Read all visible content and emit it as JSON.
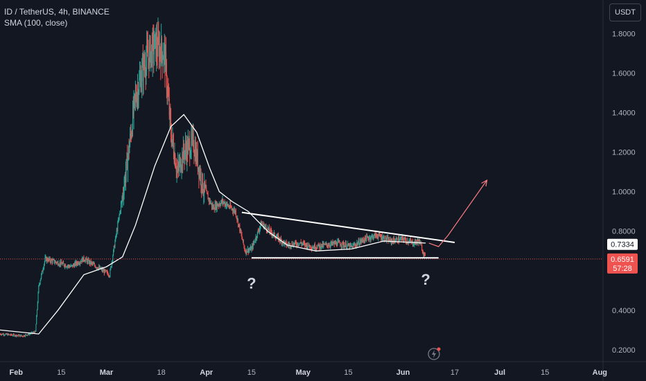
{
  "header": {
    "symbol_line": "ID / TetherUS, 4h, BINANCE",
    "indicator_line": "SMA (100, close)",
    "currency_button": "USDT"
  },
  "colors": {
    "background": "#131722",
    "up": "#26a69a",
    "down": "#ef5350",
    "sma": "#ffffff",
    "annotation": "#ffffff",
    "arrow": "#f77c80",
    "last_price_line": "#ef5350"
  },
  "chart_data": {
    "type": "candlestick",
    "timeframe": "4h",
    "x_axis": {
      "ticks": [
        "Feb",
        "15",
        "Mar",
        "18",
        "Apr",
        "15",
        "May",
        "15",
        "Jun",
        "17",
        "Jul",
        "15",
        "Aug"
      ],
      "bold_ticks": [
        "Feb",
        "Mar",
        "Apr",
        "May",
        "Jun",
        "Jul",
        "Aug"
      ],
      "tick_dates": [
        "2023-02-01",
        "2023-02-15",
        "2023-03-01",
        "2023-03-18",
        "2023-04-01",
        "2023-04-15",
        "2023-05-01",
        "2023-05-15",
        "2023-06-01",
        "2023-06-17",
        "2023-07-01",
        "2023-07-15",
        "2023-08-01"
      ],
      "range": [
        "2023-01-27",
        "2023-08-02"
      ]
    },
    "y_axis": {
      "ticks": [
        "1.8000",
        "1.6000",
        "1.4000",
        "1.2000",
        "1.0000",
        "0.8000",
        "0.4000",
        "0.2000"
      ],
      "range": [
        0.14,
        1.97
      ],
      "position": "right"
    },
    "price_path": [
      [
        "2023-01-27",
        0.28
      ],
      [
        "2023-02-03",
        0.27
      ],
      [
        "2023-02-07",
        0.29
      ],
      [
        "2023-02-08",
        0.52
      ],
      [
        "2023-02-10",
        0.66
      ],
      [
        "2023-02-14",
        0.64
      ],
      [
        "2023-02-18",
        0.62
      ],
      [
        "2023-02-22",
        0.66
      ],
      [
        "2023-02-26",
        0.62
      ],
      [
        "2023-03-02",
        0.58
      ],
      [
        "2023-03-03",
        0.68
      ],
      [
        "2023-03-06",
        0.98
      ],
      [
        "2023-03-08",
        1.22
      ],
      [
        "2023-03-10",
        1.48
      ],
      [
        "2023-03-13",
        1.66
      ],
      [
        "2023-03-16",
        1.74
      ],
      [
        "2023-03-19",
        1.7
      ],
      [
        "2023-03-21",
        1.3
      ],
      [
        "2023-03-23",
        1.1
      ],
      [
        "2023-03-25",
        1.2
      ],
      [
        "2023-03-28",
        1.25
      ],
      [
        "2023-03-31",
        1.02
      ],
      [
        "2023-04-03",
        0.92
      ],
      [
        "2023-04-06",
        0.95
      ],
      [
        "2023-04-10",
        0.9
      ],
      [
        "2023-04-13",
        0.7
      ],
      [
        "2023-04-15",
        0.71
      ],
      [
        "2023-04-18",
        0.84
      ],
      [
        "2023-04-22",
        0.78
      ],
      [
        "2023-04-26",
        0.73
      ],
      [
        "2023-04-30",
        0.74
      ],
      [
        "2023-05-04",
        0.72
      ],
      [
        "2023-05-08",
        0.73
      ],
      [
        "2023-05-12",
        0.74
      ],
      [
        "2023-05-16",
        0.72
      ],
      [
        "2023-05-20",
        0.76
      ],
      [
        "2023-05-24",
        0.78
      ],
      [
        "2023-05-28",
        0.75
      ],
      [
        "2023-06-01",
        0.76
      ],
      [
        "2023-06-04",
        0.74
      ],
      [
        "2023-06-06",
        0.75
      ],
      [
        "2023-06-08",
        0.66
      ]
    ],
    "sma": {
      "name": "SMA (100, close)",
      "points": [
        [
          "2023-01-27",
          0.3
        ],
        [
          "2023-02-08",
          0.28
        ],
        [
          "2023-02-14",
          0.4
        ],
        [
          "2023-02-22",
          0.58
        ],
        [
          "2023-03-01",
          0.62
        ],
        [
          "2023-03-06",
          0.67
        ],
        [
          "2023-03-10",
          0.83
        ],
        [
          "2023-03-16",
          1.13
        ],
        [
          "2023-03-21",
          1.33
        ],
        [
          "2023-03-25",
          1.39
        ],
        [
          "2023-03-29",
          1.3
        ],
        [
          "2023-04-02",
          1.12
        ],
        [
          "2023-04-05",
          1.0
        ],
        [
          "2023-04-09",
          0.95
        ],
        [
          "2023-04-14",
          0.9
        ],
        [
          "2023-04-20",
          0.8
        ],
        [
          "2023-04-26",
          0.73
        ],
        [
          "2023-05-05",
          0.7
        ],
        [
          "2023-05-16",
          0.71
        ],
        [
          "2023-05-26",
          0.75
        ],
        [
          "2023-06-08",
          0.74
        ]
      ]
    },
    "drawings": {
      "resistance_line": [
        [
          "2023-04-12",
          0.895
        ],
        [
          "2023-06-17",
          0.743
        ]
      ],
      "support_line": [
        [
          "2023-04-15",
          0.665
        ],
        [
          "2023-06-12",
          0.665
        ]
      ],
      "projection_path": [
        [
          "2023-06-09",
          0.74
        ],
        [
          "2023-06-12",
          0.722
        ],
        [
          "2023-06-15",
          0.78
        ],
        [
          "2023-06-27",
          1.058
        ]
      ],
      "question_marks": [
        {
          "text": "?",
          "date": "2023-04-15",
          "price": 0.51
        },
        {
          "text": "?",
          "date": "2023-06-08",
          "price": 0.53
        }
      ]
    },
    "price_labels": [
      {
        "text": "0.7334",
        "price": 0.7334,
        "style": "white"
      },
      {
        "text": "0.6591",
        "price": 0.6591,
        "style": "red"
      },
      {
        "text": "57:28",
        "style": "red-countdown"
      }
    ],
    "last_price": 0.6591
  }
}
